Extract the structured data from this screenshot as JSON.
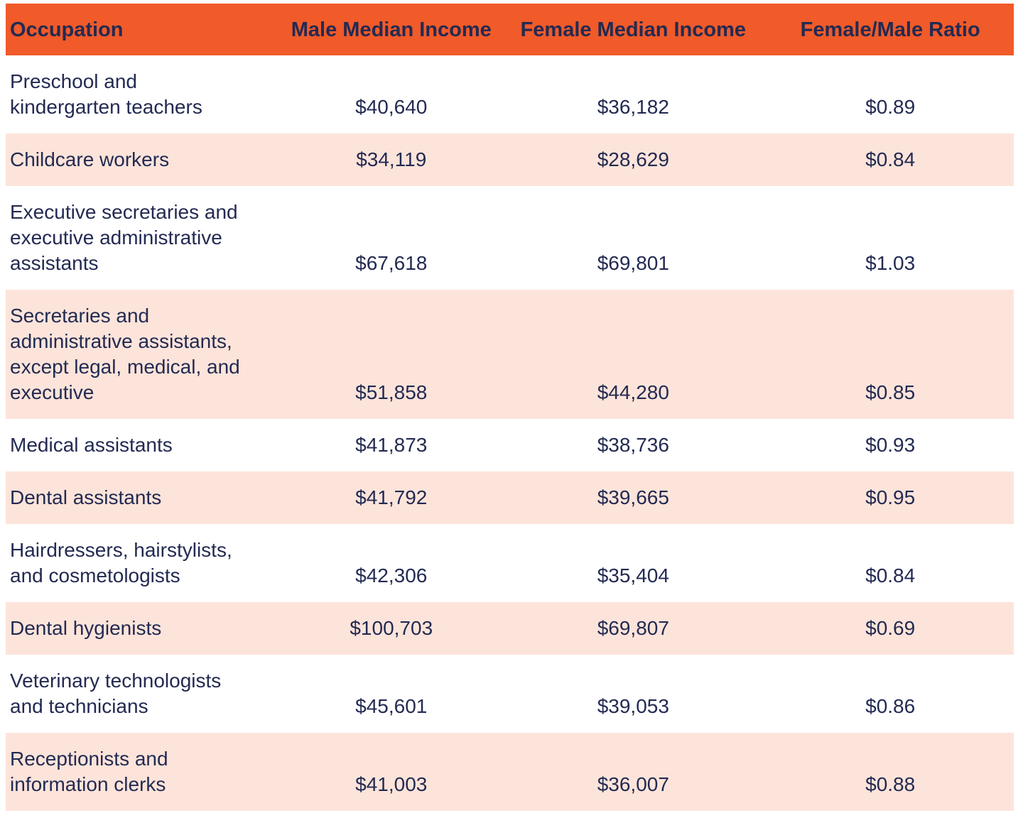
{
  "colors": {
    "header_bg": "#F15A29",
    "alt_row_bg": "#FDE4DA",
    "text": "#232A52",
    "row_bg": "#FFFFFF"
  },
  "chart_data": {
    "type": "table",
    "title": "",
    "columns": [
      "Occupation",
      "Male Median Income",
      "Female Median Income",
      "Female/Male Ratio"
    ],
    "rows": [
      {
        "occupation": "Preschool and kindergarten teachers",
        "male_income": "$40,640",
        "female_income": "$36,182",
        "ratio": "$0.89"
      },
      {
        "occupation": "Childcare workers",
        "male_income": "$34,119",
        "female_income": "$28,629",
        "ratio": "$0.84"
      },
      {
        "occupation": "Executive secretaries and executive administrative assistants",
        "male_income": "$67,618",
        "female_income": "$69,801",
        "ratio": "$1.03"
      },
      {
        "occupation": "Secretaries and administrative assistants, except legal, medical, and executive",
        "male_income": "$51,858",
        "female_income": "$44,280",
        "ratio": "$0.85"
      },
      {
        "occupation": "Medical assistants",
        "male_income": "$41,873",
        "female_income": "$38,736",
        "ratio": "$0.93"
      },
      {
        "occupation": "Dental assistants",
        "male_income": "$41,792",
        "female_income": "$39,665",
        "ratio": "$0.95"
      },
      {
        "occupation": "Hairdressers, hairstylists, and cosmetologists",
        "male_income": "$42,306",
        "female_income": "$35,404",
        "ratio": "$0.84"
      },
      {
        "occupation": "Dental hygienists",
        "male_income": "$100,703",
        "female_income": "$69,807",
        "ratio": "$0.69"
      },
      {
        "occupation": "Veterinary technologists and technicians",
        "male_income": "$45,601",
        "female_income": "$39,053",
        "ratio": "$0.86"
      },
      {
        "occupation": "Receptionists and information clerks",
        "male_income": "$41,003",
        "female_income": "$36,007",
        "ratio": "$0.88"
      }
    ],
    "numeric": {
      "male_income": [
        40640,
        34119,
        67618,
        51858,
        41873,
        41792,
        42306,
        100703,
        45601,
        41003
      ],
      "female_income": [
        36182,
        28629,
        69801,
        44280,
        38736,
        39665,
        35404,
        69807,
        39053,
        36007
      ],
      "female_male_ratio": [
        0.89,
        0.84,
        1.03,
        0.85,
        0.93,
        0.95,
        0.84,
        0.69,
        0.86,
        0.88
      ]
    }
  }
}
